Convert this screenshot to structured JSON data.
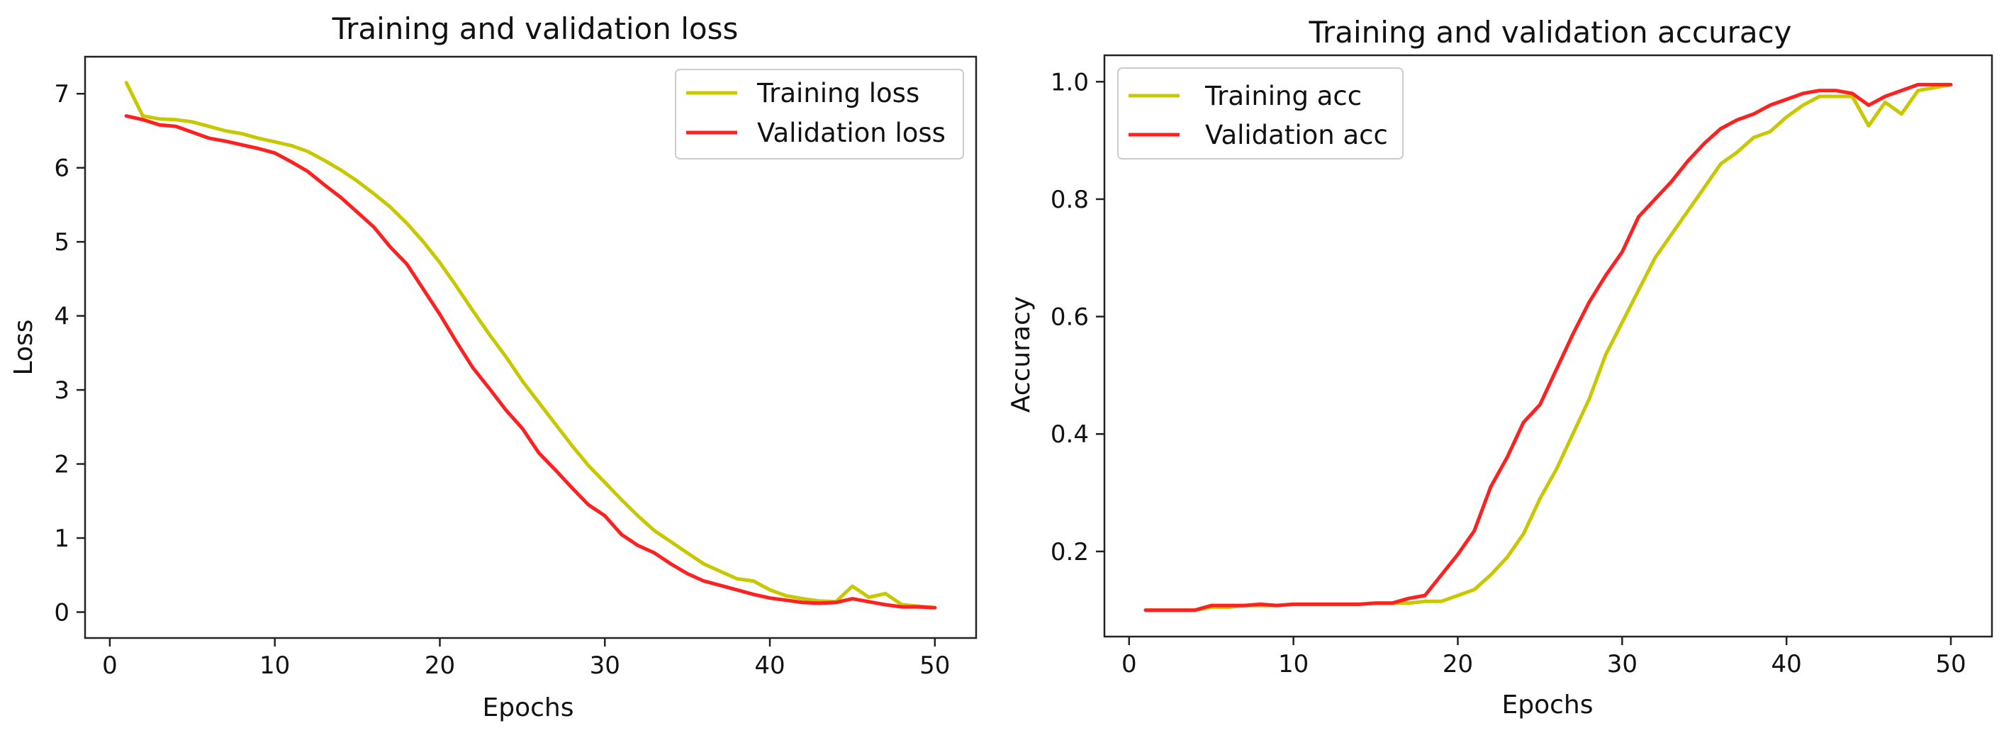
{
  "chart_data": [
    {
      "type": "line",
      "title": "Training and validation loss",
      "xlabel": "Epochs",
      "ylabel": "Loss",
      "xlim": [
        -1.5,
        52.5
      ],
      "ylim": [
        -0.35,
        7.5
      ],
      "xticks": [
        0,
        10,
        20,
        30,
        40,
        50
      ],
      "yticks": [
        0,
        1,
        2,
        3,
        4,
        5,
        6,
        7
      ],
      "legend": "top-right",
      "grid": false,
      "x": [
        1,
        2,
        3,
        4,
        5,
        6,
        7,
        8,
        9,
        10,
        11,
        12,
        13,
        14,
        15,
        16,
        17,
        18,
        19,
        20,
        21,
        22,
        23,
        24,
        25,
        26,
        27,
        28,
        29,
        30,
        31,
        32,
        33,
        34,
        35,
        36,
        37,
        38,
        39,
        40,
        41,
        42,
        43,
        44,
        45,
        46,
        47,
        48,
        49,
        50
      ],
      "series": [
        {
          "name": "Training loss",
          "color": "#c8c800",
          "values": [
            7.15,
            6.7,
            6.66,
            6.65,
            6.62,
            6.56,
            6.5,
            6.46,
            6.4,
            6.35,
            6.3,
            6.22,
            6.1,
            5.97,
            5.82,
            5.65,
            5.47,
            5.25,
            5.0,
            4.72,
            4.4,
            4.07,
            3.75,
            3.45,
            3.12,
            2.83,
            2.54,
            2.25,
            1.98,
            1.75,
            1.52,
            1.3,
            1.1,
            0.95,
            0.8,
            0.65,
            0.55,
            0.45,
            0.42,
            0.3,
            0.22,
            0.18,
            0.15,
            0.14,
            0.35,
            0.2,
            0.25,
            0.1,
            0.08,
            0.06
          ]
        },
        {
          "name": "Validation loss",
          "color": "#ff2020",
          "values": [
            6.7,
            6.65,
            6.58,
            6.56,
            6.48,
            6.4,
            6.36,
            6.31,
            6.26,
            6.2,
            6.08,
            5.95,
            5.77,
            5.6,
            5.4,
            5.2,
            4.93,
            4.7,
            4.36,
            4.02,
            3.65,
            3.3,
            3.02,
            2.73,
            2.48,
            2.15,
            1.92,
            1.68,
            1.45,
            1.3,
            1.05,
            0.9,
            0.8,
            0.65,
            0.52,
            0.42,
            0.36,
            0.3,
            0.24,
            0.19,
            0.16,
            0.13,
            0.12,
            0.13,
            0.18,
            0.14,
            0.1,
            0.07,
            0.07,
            0.06
          ]
        }
      ]
    },
    {
      "type": "line",
      "title": "Training and validation accuracy",
      "xlabel": "Epochs",
      "ylabel": "Accuracy",
      "xlim": [
        -1.5,
        52.5
      ],
      "ylim": [
        0.055,
        1.045
      ],
      "xticks": [
        0,
        10,
        20,
        30,
        40,
        50
      ],
      "yticks": [
        0.2,
        0.4,
        0.6,
        0.8,
        1.0
      ],
      "ytick_labels": [
        "0.2",
        "0.4",
        "0.6",
        "0.8",
        "1.0"
      ],
      "legend": "top-left",
      "grid": false,
      "x": [
        1,
        2,
        3,
        4,
        5,
        6,
        7,
        8,
        9,
        10,
        11,
        12,
        13,
        14,
        15,
        16,
        17,
        18,
        19,
        20,
        21,
        22,
        23,
        24,
        25,
        26,
        27,
        28,
        29,
        30,
        31,
        32,
        33,
        34,
        35,
        36,
        37,
        38,
        39,
        40,
        41,
        42,
        43,
        44,
        45,
        46,
        47,
        48,
        49,
        50
      ],
      "series": [
        {
          "name": "Training acc",
          "color": "#c8c800",
          "values": [
            0.1,
            0.1,
            0.1,
            0.1,
            0.105,
            0.105,
            0.108,
            0.108,
            0.108,
            0.11,
            0.11,
            0.11,
            0.11,
            0.11,
            0.112,
            0.112,
            0.112,
            0.115,
            0.115,
            0.125,
            0.135,
            0.16,
            0.19,
            0.23,
            0.29,
            0.34,
            0.4,
            0.46,
            0.535,
            0.59,
            0.645,
            0.7,
            0.74,
            0.78,
            0.82,
            0.86,
            0.88,
            0.905,
            0.915,
            0.94,
            0.96,
            0.975,
            0.975,
            0.975,
            0.925,
            0.965,
            0.945,
            0.985,
            0.99,
            0.995
          ]
        },
        {
          "name": "Validation acc",
          "color": "#ff2020",
          "values": [
            0.1,
            0.1,
            0.1,
            0.1,
            0.108,
            0.108,
            0.108,
            0.11,
            0.108,
            0.11,
            0.11,
            0.11,
            0.11,
            0.11,
            0.112,
            0.112,
            0.12,
            0.125,
            0.16,
            0.195,
            0.235,
            0.31,
            0.36,
            0.42,
            0.45,
            0.51,
            0.57,
            0.625,
            0.67,
            0.71,
            0.77,
            0.8,
            0.83,
            0.865,
            0.895,
            0.92,
            0.935,
            0.945,
            0.96,
            0.97,
            0.98,
            0.985,
            0.985,
            0.98,
            0.96,
            0.975,
            0.985,
            0.995,
            0.995,
            0.995
          ]
        }
      ]
    }
  ]
}
